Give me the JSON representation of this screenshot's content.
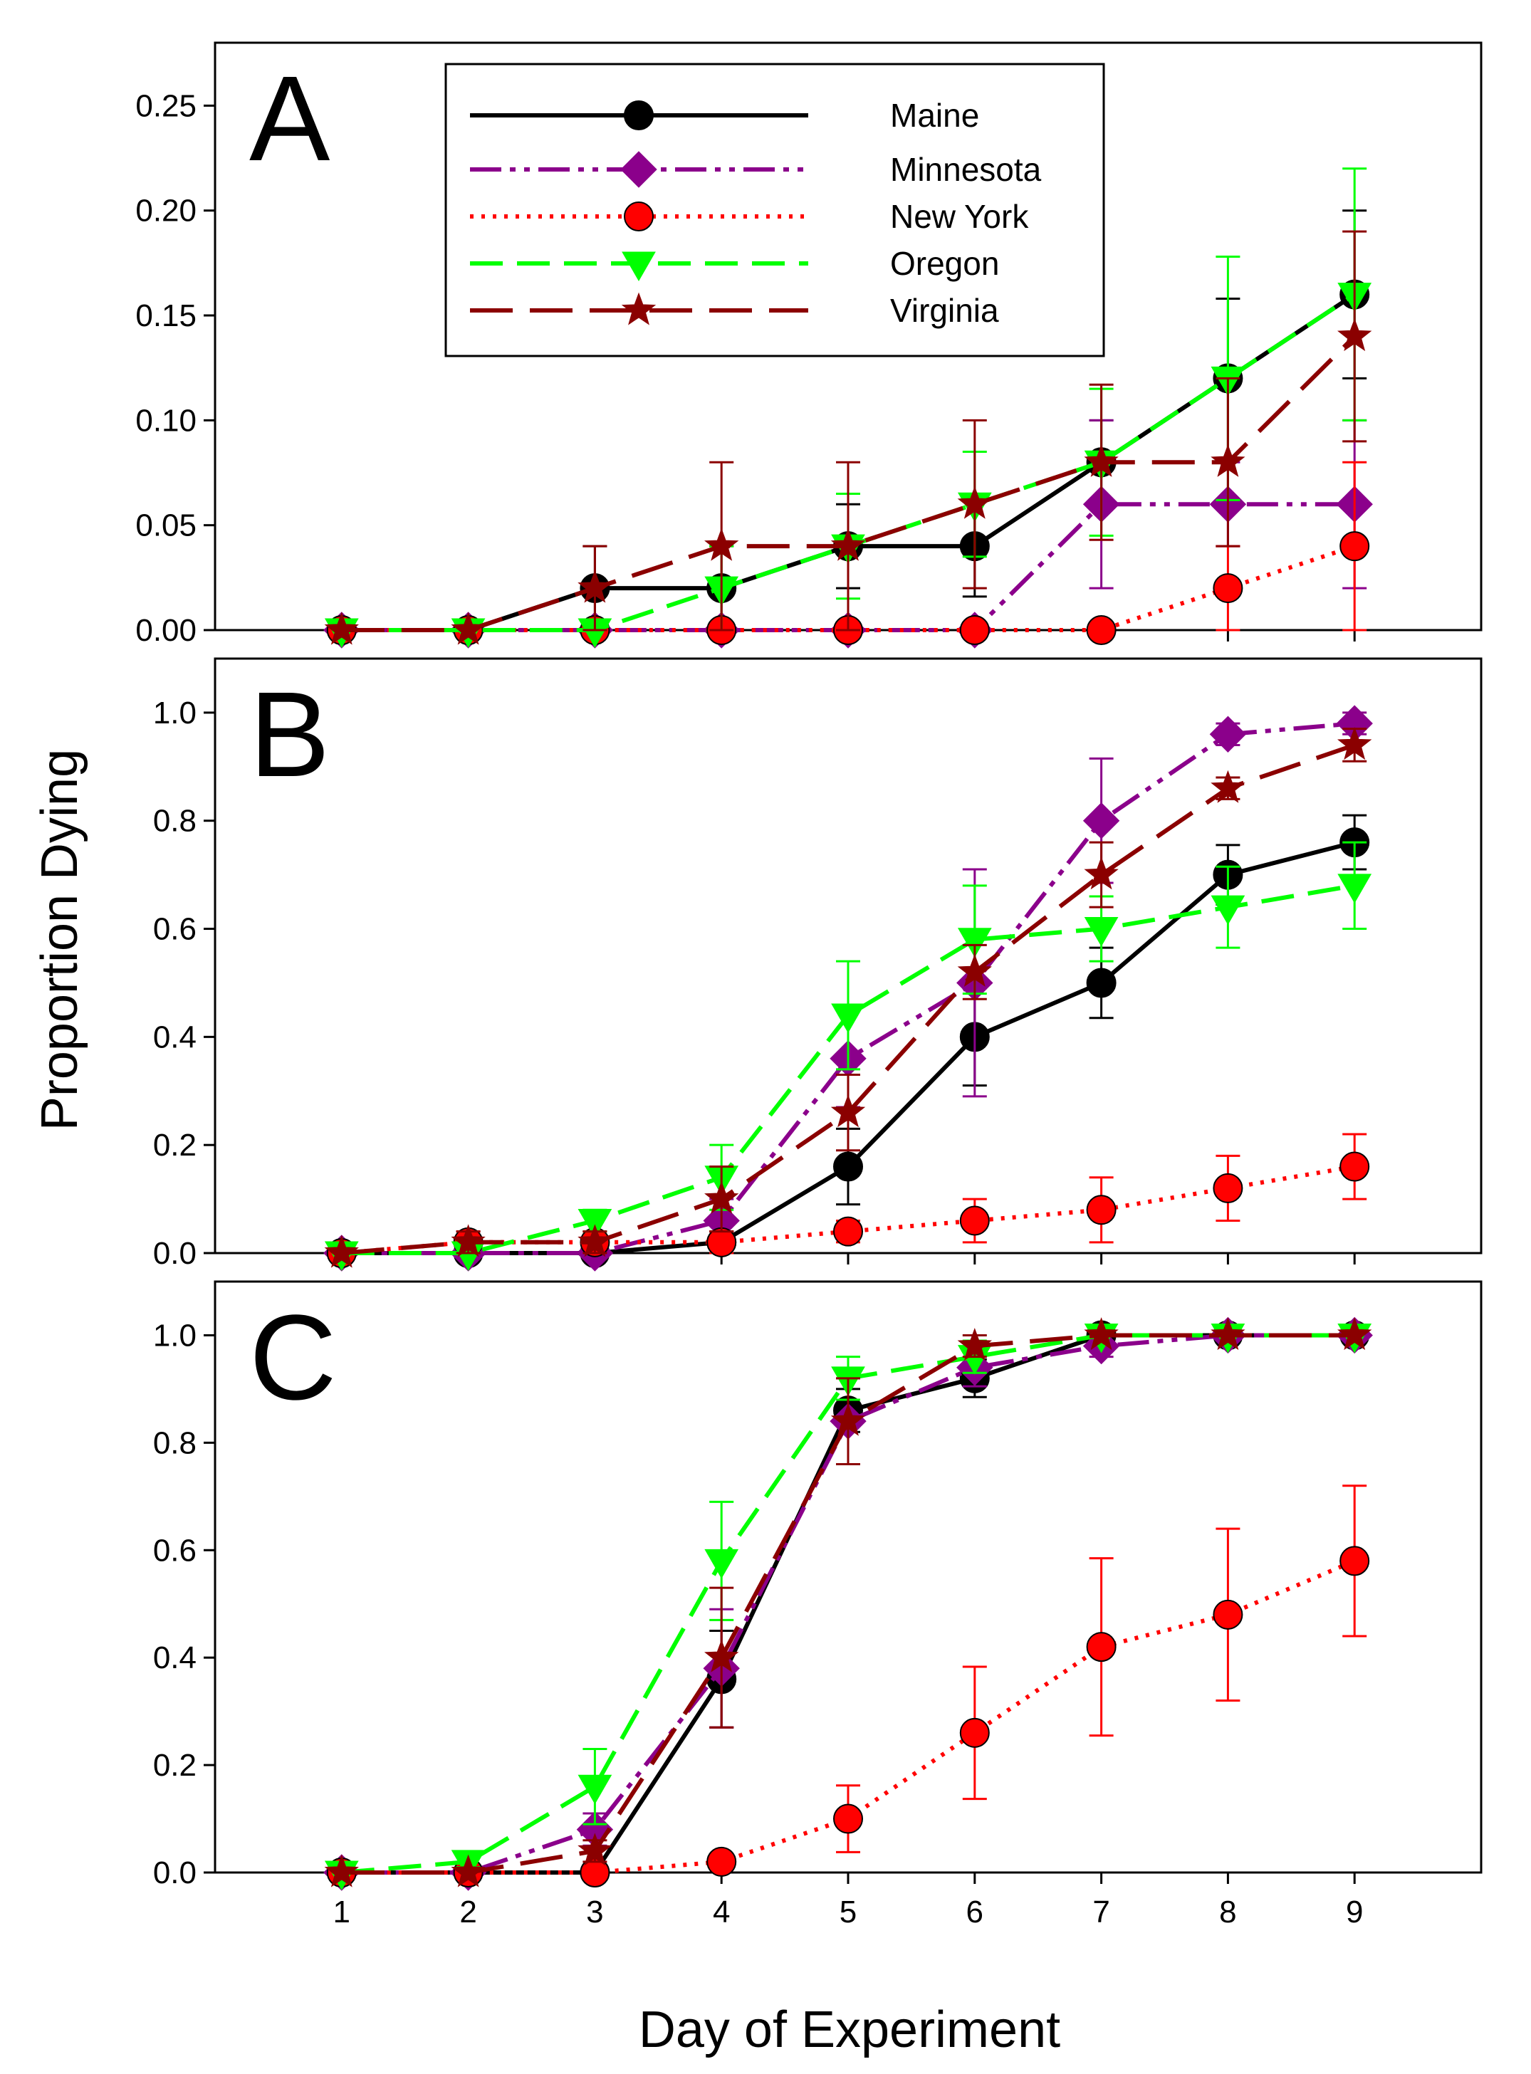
{
  "chart_data": {
    "type": "line",
    "ylabel": "Proportion Dying",
    "xlabel": "Day of Experiment",
    "x": [
      1,
      2,
      3,
      4,
      5,
      6,
      7,
      8,
      9
    ],
    "xlim": [
      0,
      10
    ],
    "legend": {
      "placement": "top-center of panel A",
      "entries": [
        "Maine",
        "Minnesota",
        "New York",
        "Oregon",
        "Virginia"
      ]
    },
    "series_styles": [
      {
        "name": "Maine",
        "color": "#000000",
        "dash": "solid",
        "marker": "circle"
      },
      {
        "name": "Minnesota",
        "color": "#8B008B",
        "dash": "dash-dot-dot",
        "marker": "diamond"
      },
      {
        "name": "New York",
        "color": "#FF0000",
        "dash": "dotted",
        "marker": "circle"
      },
      {
        "name": "Oregon",
        "color": "#00FF00",
        "dash": "dashed",
        "marker": "triangle-down"
      },
      {
        "name": "Virginia",
        "color": "#8B0000",
        "dash": "long-dash",
        "marker": "star"
      }
    ],
    "panels": [
      {
        "label": "A",
        "ylim": [
          0,
          0.28
        ],
        "yticks": [
          0.0,
          0.05,
          0.1,
          0.15,
          0.2,
          0.25
        ],
        "ytick_labels": [
          "0.00",
          "0.05",
          "0.10",
          "0.15",
          "0.20",
          "0.25"
        ],
        "series": [
          {
            "name": "Maine",
            "values": [
              0,
              0,
              0.02,
              0.02,
              0.04,
              0.04,
              0.08,
              0.12,
              0.16
            ],
            "errors": [
              0,
              0,
              0.02,
              0.02,
              0.02,
              0.024,
              0.02,
              0.038,
              0.04
            ]
          },
          {
            "name": "Minnesota",
            "values": [
              0,
              0,
              0,
              0,
              0,
              0,
              0.06,
              0.06,
              0.06
            ],
            "errors": [
              0,
              0,
              0,
              0,
              0,
              0,
              0.04,
              0.02,
              0.04
            ]
          },
          {
            "name": "New York",
            "values": [
              0,
              0,
              0,
              0,
              0,
              0,
              0,
              0.02,
              0.04
            ],
            "errors": [
              0,
              0,
              0,
              0,
              0,
              0,
              0,
              0.02,
              0.04
            ]
          },
          {
            "name": "Oregon",
            "values": [
              0,
              0,
              0,
              0.02,
              0.04,
              0.06,
              0.08,
              0.12,
              0.16
            ],
            "errors": [
              0,
              0,
              0,
              0.02,
              0.025,
              0.025,
              0.035,
              0.058,
              0.06
            ]
          },
          {
            "name": "Virginia",
            "values": [
              0,
              0,
              0.02,
              0.04,
              0.04,
              0.06,
              0.08,
              0.08,
              0.14
            ],
            "errors": [
              0,
              0,
              0.02,
              0.04,
              0.04,
              0.04,
              0.037,
              0.04,
              0.05
            ]
          }
        ]
      },
      {
        "label": "B",
        "ylim": [
          0,
          1.1
        ],
        "yticks": [
          0.0,
          0.2,
          0.4,
          0.6,
          0.8,
          1.0
        ],
        "ytick_labels": [
          "0.0",
          "0.2",
          "0.4",
          "0.6",
          "0.8",
          "1.0"
        ],
        "series": [
          {
            "name": "Maine",
            "values": [
              0,
              0,
              0,
              0.02,
              0.16,
              0.4,
              0.5,
              0.7,
              0.76
            ],
            "errors": [
              0,
              0,
              0,
              0.02,
              0.07,
              0.09,
              0.065,
              0.055,
              0.05
            ]
          },
          {
            "name": "Minnesota",
            "values": [
              0,
              0,
              0,
              0.06,
              0.36,
              0.5,
              0.8,
              0.96,
              0.98
            ],
            "errors": [
              0,
              0,
              0,
              0.04,
              0.09,
              0.21,
              0.115,
              0.02,
              0.02
            ]
          },
          {
            "name": "New York",
            "values": [
              0,
              0.02,
              0.02,
              0.02,
              0.04,
              0.06,
              0.08,
              0.12,
              0.16
            ],
            "errors": [
              0,
              0.02,
              0.02,
              0.02,
              0.02,
              0.04,
              0.06,
              0.06,
              0.06
            ]
          },
          {
            "name": "Oregon",
            "values": [
              0,
              0,
              0.06,
              0.14,
              0.44,
              0.58,
              0.6,
              0.64,
              0.68
            ],
            "errors": [
              0,
              0,
              0.02,
              0.06,
              0.1,
              0.1,
              0.06,
              0.075,
              0.08
            ]
          },
          {
            "name": "Virginia",
            "values": [
              0,
              0.02,
              0.02,
              0.1,
              0.26,
              0.52,
              0.7,
              0.86,
              0.94
            ],
            "errors": [
              0,
              0.02,
              0.02,
              0.06,
              0.07,
              0.05,
              0.06,
              0.02,
              0.03
            ]
          }
        ]
      },
      {
        "label": "C",
        "ylim": [
          0,
          1.1
        ],
        "yticks": [
          0.0,
          0.2,
          0.4,
          0.6,
          0.8,
          1.0
        ],
        "ytick_labels": [
          "0.0",
          "0.2",
          "0.4",
          "0.6",
          "0.8",
          "1.0"
        ],
        "series": [
          {
            "name": "Maine",
            "values": [
              0,
              0,
              0,
              0.36,
              0.86,
              0.92,
              1.0,
              1.0,
              1.0
            ],
            "errors": [
              0,
              0,
              0,
              0.09,
              0.04,
              0.035,
              0,
              0,
              0
            ]
          },
          {
            "name": "Minnesota",
            "values": [
              0,
              0,
              0.08,
              0.38,
              0.84,
              0.94,
              0.98,
              1.0,
              1.0
            ],
            "errors": [
              0,
              0,
              0.03,
              0.11,
              0.08,
              0.035,
              0.02,
              0,
              0
            ]
          },
          {
            "name": "New York",
            "values": [
              0,
              0,
              0,
              0.02,
              0.1,
              0.26,
              0.42,
              0.48,
              0.58
            ],
            "errors": [
              0,
              0,
              0,
              0.01,
              0.062,
              0.123,
              0.165,
              0.16,
              0.14
            ]
          },
          {
            "name": "Oregon",
            "values": [
              0,
              0.02,
              0.16,
              0.58,
              0.92,
              0.96,
              1.0,
              1.0,
              1.0
            ],
            "errors": [
              0,
              0.01,
              0.07,
              0.11,
              0.04,
              0.03,
              0,
              0,
              0
            ]
          },
          {
            "name": "Virginia",
            "values": [
              0,
              0,
              0.04,
              0.4,
              0.84,
              0.98,
              1.0,
              1.0,
              1.0
            ],
            "errors": [
              0,
              0,
              0.02,
              0.13,
              0.08,
              0.02,
              0,
              0,
              0
            ]
          }
        ]
      }
    ]
  }
}
